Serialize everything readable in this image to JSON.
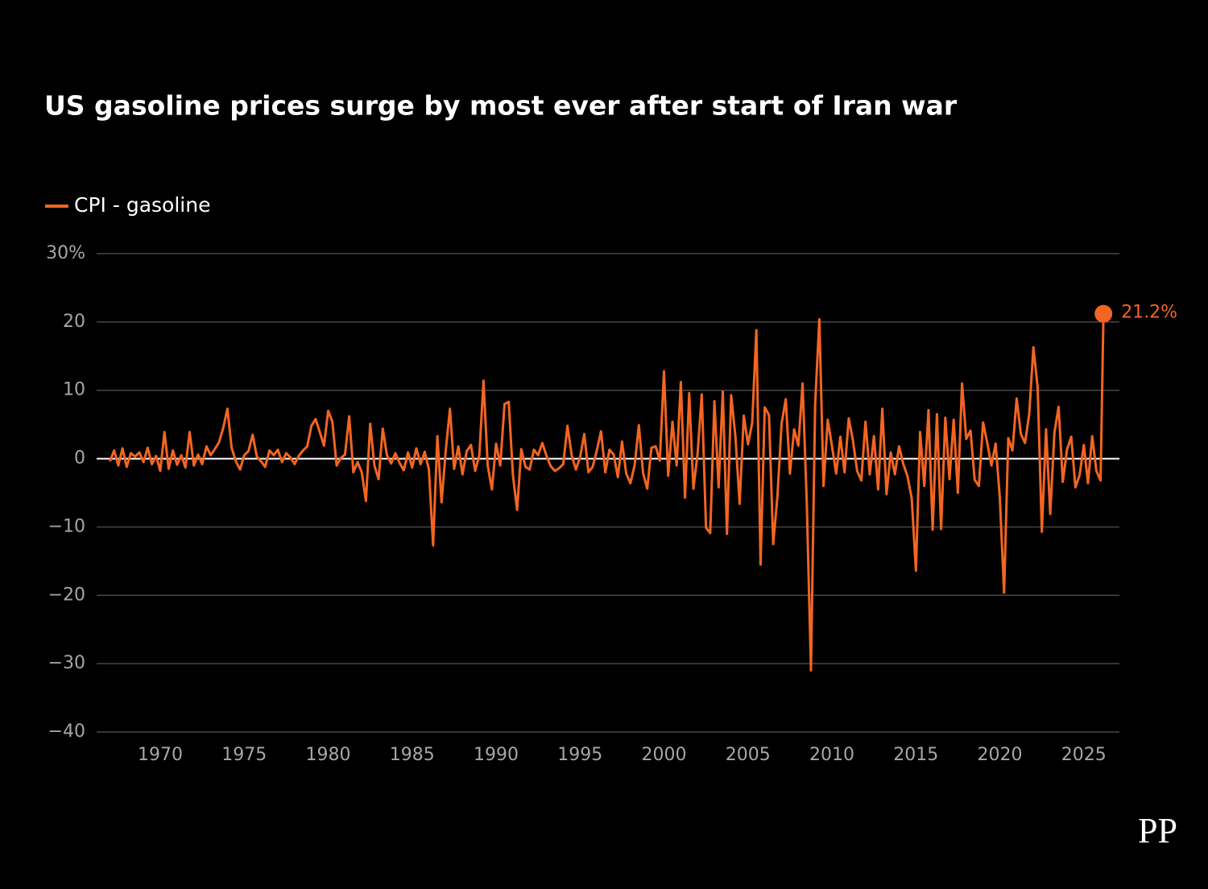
{
  "chart_data": {
    "type": "line",
    "title": "US gasoline prices surge by most ever after start of Iran war",
    "watermark": "PP",
    "x": [
      1967,
      1967.25,
      1967.5,
      1967.75,
      1968,
      1968.25,
      1968.5,
      1968.75,
      1969,
      1969.25,
      1969.5,
      1969.75,
      1970,
      1970.25,
      1970.5,
      1970.75,
      1971,
      1971.25,
      1971.5,
      1971.75,
      1972,
      1972.25,
      1972.5,
      1972.75,
      1973,
      1973.25,
      1973.5,
      1973.75,
      1974,
      1974.25,
      1974.5,
      1974.75,
      1975,
      1975.25,
      1975.5,
      1975.75,
      1976,
      1976.25,
      1976.5,
      1976.75,
      1977,
      1977.25,
      1977.5,
      1977.75,
      1978,
      1978.25,
      1978.5,
      1978.75,
      1979,
      1979.25,
      1979.5,
      1979.75,
      1980,
      1980.25,
      1980.5,
      1980.75,
      1981,
      1981.25,
      1981.5,
      1981.75,
      1982,
      1982.25,
      1982.5,
      1982.75,
      1983,
      1983.25,
      1983.5,
      1983.75,
      1984,
      1984.25,
      1984.5,
      1984.75,
      1985,
      1985.25,
      1985.5,
      1985.75,
      1986,
      1986.25,
      1986.5,
      1986.75,
      1987,
      1987.25,
      1987.5,
      1987.75,
      1988,
      1988.25,
      1988.5,
      1988.75,
      1989,
      1989.25,
      1989.5,
      1989.75,
      1990,
      1990.25,
      1990.5,
      1990.75,
      1991,
      1991.25,
      1991.5,
      1991.75,
      1992,
      1992.25,
      1992.5,
      1992.75,
      1993,
      1993.25,
      1993.5,
      1993.75,
      1994,
      1994.25,
      1994.5,
      1994.75,
      1995,
      1995.25,
      1995.5,
      1995.75,
      1996,
      1996.25,
      1996.5,
      1996.75,
      1997,
      1997.25,
      1997.5,
      1997.75,
      1998,
      1998.25,
      1998.5,
      1998.75,
      1999,
      1999.25,
      1999.5,
      1999.75,
      2000,
      2000.25,
      2000.5,
      2000.75,
      2001,
      2001.25,
      2001.5,
      2001.75,
      2002,
      2002.25,
      2002.5,
      2002.75,
      2003,
      2003.25,
      2003.5,
      2003.75,
      2004,
      2004.25,
      2004.5,
      2004.75,
      2005,
      2005.25,
      2005.5,
      2005.75,
      2006,
      2006.25,
      2006.5,
      2006.75,
      2007,
      2007.25,
      2007.5,
      2007.75,
      2008,
      2008.25,
      2008.5,
      2008.75,
      2009,
      2009.25,
      2009.5,
      2009.75,
      2010,
      2010.25,
      2010.5,
      2010.75,
      2011,
      2011.25,
      2011.5,
      2011.75,
      2012,
      2012.25,
      2012.5,
      2012.75,
      2013,
      2013.25,
      2013.5,
      2013.75,
      2014,
      2014.25,
      2014.5,
      2014.75,
      2015,
      2015.25,
      2015.5,
      2015.75,
      2016,
      2016.25,
      2016.5,
      2016.75,
      2017,
      2017.25,
      2017.5,
      2017.75,
      2018,
      2018.25,
      2018.5,
      2018.75,
      2019,
      2019.25,
      2019.5,
      2019.75,
      2020,
      2020.25,
      2020.5,
      2020.75,
      2021,
      2021.25,
      2021.5,
      2021.75,
      2022,
      2022.25,
      2022.5,
      2022.75,
      2023,
      2023.25,
      2023.5,
      2023.75,
      2024,
      2024.25,
      2024.5,
      2024.75,
      2025,
      2025.25,
      2025.5,
      2025.75,
      2026,
      2026.17
    ],
    "series": [
      {
        "name": "CPI - gasoline",
        "color": "#f26522",
        "values": [
          -0.4,
          1.2,
          -1.0,
          1.5,
          -1.2,
          0.8,
          0.3,
          0.9,
          -0.5,
          1.6,
          -0.8,
          0.4,
          -1.8,
          3.9,
          -1.5,
          1.2,
          -0.9,
          0.5,
          -1.3,
          3.9,
          -1.0,
          0.6,
          -0.8,
          1.8,
          0.5,
          1.4,
          2.4,
          4.5,
          7.3,
          1.6,
          -0.4,
          -1.6,
          0.5,
          1.1,
          3.5,
          0.3,
          -0.4,
          -1.2,
          1.2,
          0.5,
          1.3,
          -0.5,
          0.8,
          0.2,
          -0.8,
          0.4,
          1.2,
          1.8,
          4.8,
          5.8,
          3.9,
          1.9,
          7.0,
          5.4,
          -1.0,
          0.1,
          0.6,
          6.2,
          -2.0,
          -0.5,
          -2.0,
          -6.2,
          5.1,
          -1.0,
          -3.0,
          4.4,
          0.5,
          -0.7,
          0.8,
          -0.6,
          -1.7,
          0.9,
          -1.3,
          1.5,
          -0.8,
          1.0,
          -1.6,
          -12.7,
          3.3,
          -6.4,
          1.2,
          7.3,
          -1.5,
          1.8,
          -2.3,
          1.1,
          2.0,
          -1.8,
          0.5,
          11.4,
          -1.0,
          -4.5,
          2.2,
          -1.0,
          8.0,
          8.3,
          -2.4,
          -7.5,
          1.4,
          -1.2,
          -1.6,
          1.3,
          0.5,
          2.3,
          0.4,
          -1.1,
          -1.8,
          -1.4,
          -0.8,
          4.8,
          0.5,
          -1.6,
          0.2,
          3.6,
          -2.0,
          -1.2,
          1.2,
          4.0,
          -2.0,
          1.3,
          0.6,
          -2.7,
          2.5,
          -2.2,
          -3.6,
          -1.0,
          4.9,
          -2.1,
          -4.4,
          1.6,
          1.8,
          -0.3,
          12.8,
          -2.5,
          5.4,
          -1.0,
          11.2,
          -5.7,
          9.6,
          -4.4,
          0.7,
          9.4,
          -10.1,
          -10.9,
          8.4,
          -4.2,
          9.8,
          -11.0,
          9.3,
          3.2,
          -6.6,
          6.3,
          2.1,
          5.2,
          18.8,
          -15.5,
          7.5,
          6.4,
          -12.5,
          -5.6,
          5.1,
          8.7,
          -2.2,
          4.3,
          1.9,
          11.0,
          -6.5,
          -31.0,
          8.0,
          20.4,
          -4.0,
          5.7,
          1.9,
          -2.2,
          3.2,
          -2.0,
          5.9,
          2.7,
          -1.8,
          -3.2,
          5.4,
          -2.3,
          3.3,
          -4.5,
          7.3,
          -5.2,
          0.9,
          -2.3,
          1.8,
          -0.8,
          -2.6,
          -5.8,
          -16.4,
          3.9,
          -4.0,
          7.1,
          -10.4,
          6.5,
          -10.3,
          6.0,
          -3.0,
          5.7,
          -5.0,
          11.0,
          2.9,
          4.1,
          -3.1,
          -4.0,
          5.3,
          2.3,
          -1.0,
          2.2,
          -5.7,
          -19.6,
          3.0,
          1.2,
          8.8,
          3.6,
          2.3,
          6.5,
          16.3,
          10.4,
          -10.7,
          4.3,
          -8.1,
          3.8,
          7.6,
          -3.4,
          1.3,
          3.2,
          -4.2,
          -2.4,
          2.0,
          -3.6,
          3.3,
          -1.8,
          -3.2,
          21.2
        ],
        "value_labels": {
          "237": "21.2%"
        }
      }
    ],
    "xlim": [
      1966.21,
      2027.12
    ],
    "xticks": [
      1970,
      1975,
      1980,
      1985,
      1990,
      1995,
      2000,
      2005,
      2010,
      2015,
      2020,
      2025
    ],
    "ylim": [
      -40,
      30
    ],
    "yticks": [
      {
        "value": -40,
        "label": "−40"
      },
      {
        "value": -30,
        "label": "−30"
      },
      {
        "value": -20,
        "label": "−20"
      },
      {
        "value": -10,
        "label": "−10"
      },
      0,
      10,
      20,
      {
        "value": 30,
        "label": "30%"
      }
    ],
    "grid": true,
    "legend": "top-left"
  }
}
